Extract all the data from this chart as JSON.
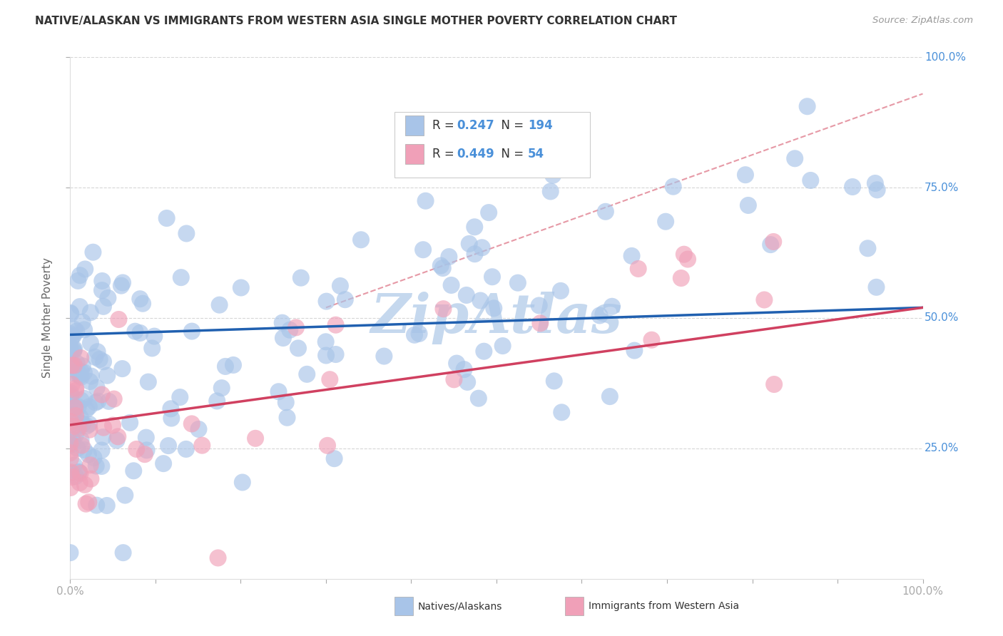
{
  "title": "NATIVE/ALASKAN VS IMMIGRANTS FROM WESTERN ASIA SINGLE MOTHER POVERTY CORRELATION CHART",
  "source": "Source: ZipAtlas.com",
  "ylabel": "Single Mother Poverty",
  "blue_R": 0.247,
  "blue_N": 194,
  "pink_R": 0.449,
  "pink_N": 54,
  "blue_color": "#a8c4e8",
  "pink_color": "#f0a0b8",
  "blue_line_color": "#2060b0",
  "pink_line_color": "#d04060",
  "dash_line_color": "#e08090",
  "watermark": "ZipAtlas",
  "watermark_color": "#c5d8ee",
  "background_color": "#ffffff",
  "legend_label_blue": "Natives/Alaskans",
  "legend_label_pink": "Immigrants from Western Asia",
  "label_color": "#4a90d9",
  "text_color": "#333333"
}
